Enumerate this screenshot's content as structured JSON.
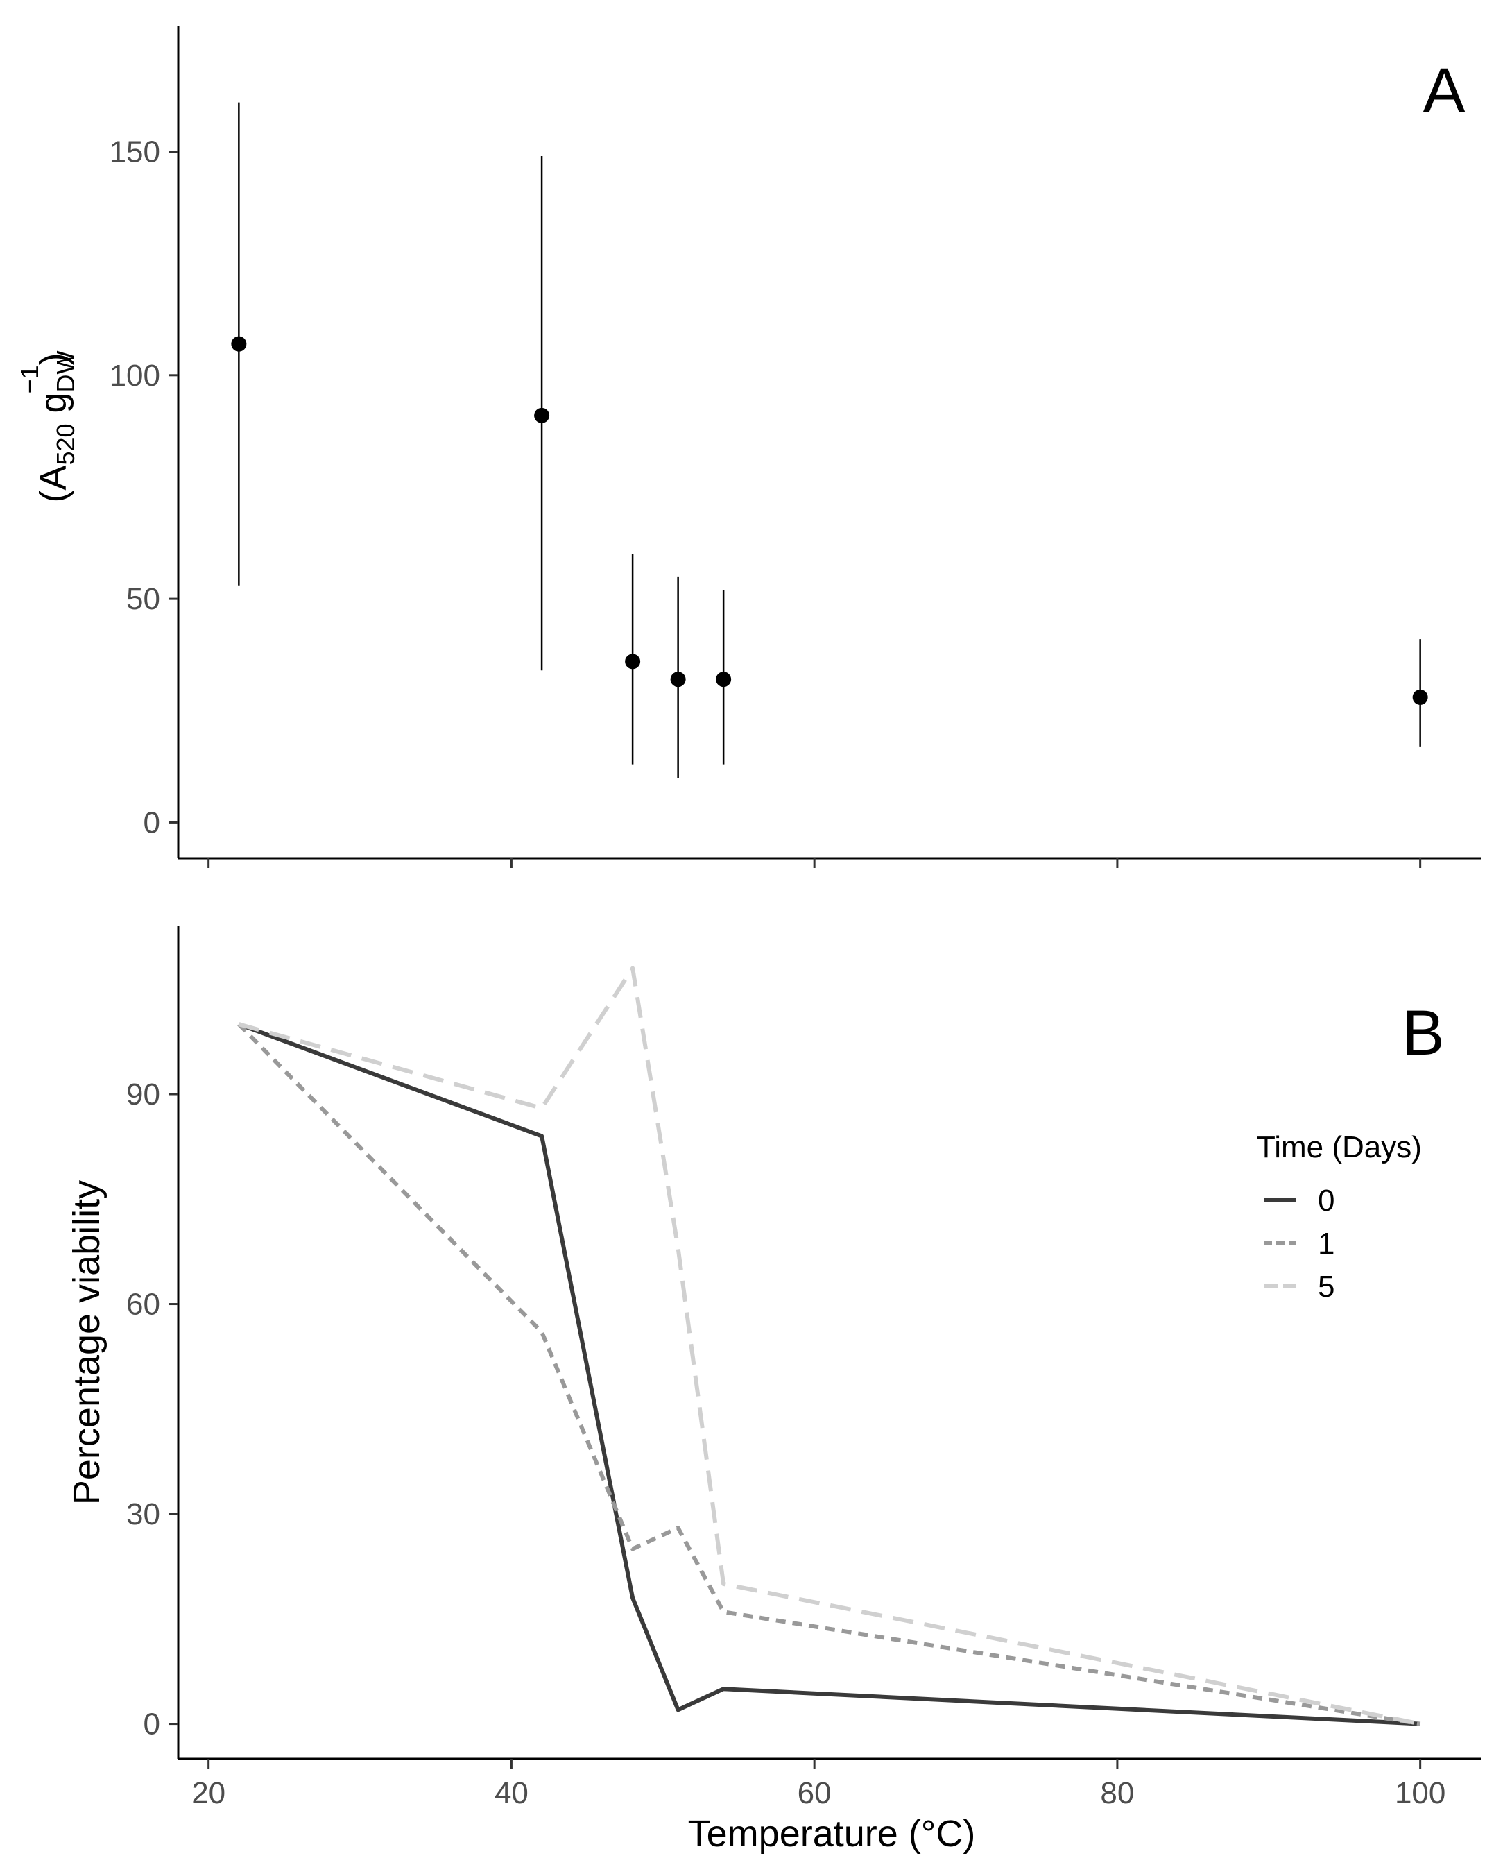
{
  "chart_data": [
    {
      "panel": "A",
      "type": "scatter",
      "title": "",
      "panel_label": "A",
      "xlabel": "",
      "ylabel": {
        "prefix": "(A",
        "sub1": "520",
        "mid": " g",
        "sub2": "DW",
        "sup": "−1",
        "suffix": ")"
      },
      "xlim": [
        18,
        104
      ],
      "ylim": [
        -8,
        178
      ],
      "yticks": [
        0,
        50,
        100,
        150
      ],
      "yticklabels": [
        "0",
        "50",
        "100",
        "150"
      ],
      "xticks": [
        20,
        40,
        60,
        80,
        100
      ],
      "points": [
        {
          "x": 22,
          "y": 107,
          "ymin": 53,
          "ymax": 161
        },
        {
          "x": 42,
          "y": 91,
          "ymin": 34,
          "ymax": 149
        },
        {
          "x": 48,
          "y": 36,
          "ymin": 13,
          "ymax": 60
        },
        {
          "x": 51,
          "y": 32,
          "ymin": 10,
          "ymax": 55
        },
        {
          "x": 54,
          "y": 32,
          "ymin": 13,
          "ymax": 52
        },
        {
          "x": 100,
          "y": 28,
          "ymin": 17,
          "ymax": 41
        }
      ],
      "grid": false
    },
    {
      "panel": "B",
      "type": "line",
      "title": "",
      "panel_label": "B",
      "xlabel": "Temperature (°C)",
      "ylabel": "Percentage viability",
      "xlim": [
        18,
        104
      ],
      "ylim": [
        -5,
        114
      ],
      "xticks": [
        20,
        40,
        60,
        80,
        100
      ],
      "xticklabels": [
        "20",
        "40",
        "60",
        "80",
        "100"
      ],
      "yticks": [
        0,
        30,
        60,
        90
      ],
      "yticklabels": [
        "0",
        "30",
        "60",
        "90"
      ],
      "x": [
        22,
        42,
        48,
        51,
        54,
        100
      ],
      "legend": {
        "title": "Time (Days)",
        "position": "right"
      },
      "series": [
        {
          "name": "0",
          "values": [
            100,
            84,
            18,
            2,
            5,
            0
          ],
          "color": "#3a3a3a",
          "dash": "solid"
        },
        {
          "name": "1",
          "values": [
            100,
            56,
            25,
            28,
            16,
            0
          ],
          "color": "#999999",
          "dash": "short-dash"
        },
        {
          "name": "5",
          "values": [
            100,
            88,
            108,
            68,
            20,
            0
          ],
          "color": "#d0d0d0",
          "dash": "long-dash"
        }
      ],
      "grid": false
    }
  ]
}
